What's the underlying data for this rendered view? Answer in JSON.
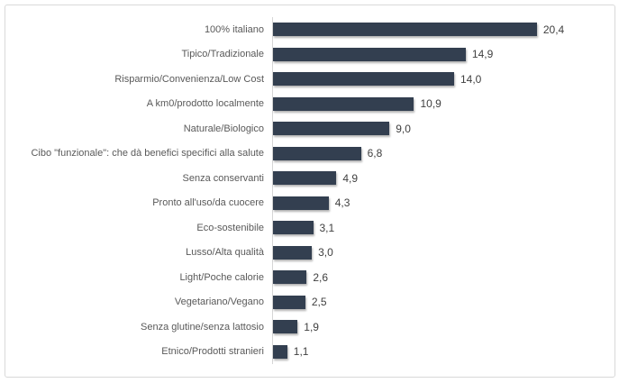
{
  "chart_data": {
    "type": "bar",
    "orientation": "horizontal",
    "title": "",
    "xlabel": "",
    "ylabel": "",
    "categories": [
      "100% italiano",
      "Tipico/Tradizionale",
      "Risparmio/Convenienza/Low Cost",
      "A km0/prodotto localmente",
      "Naturale/Biologico",
      "Cibo \"funzionale\": che dà benefici specifici alla salute",
      "Senza conservanti",
      "Pronto all'uso/da cuocere",
      "Eco-sostenibile",
      "Lusso/Alta qualità",
      "Light/Poche calorie",
      "Vegetariano/Vegano",
      "Senza glutine/senza lattosio",
      "Etnico/Prodotti stranieri"
    ],
    "values": [
      20.4,
      14.9,
      14.0,
      10.9,
      9.0,
      6.8,
      4.9,
      4.3,
      3.1,
      3.0,
      2.6,
      2.5,
      1.9,
      1.1
    ],
    "value_labels": [
      "20,4",
      "14,9",
      "14,0",
      "10,9",
      "9,0",
      "6,8",
      "4,9",
      "4,3",
      "3,1",
      "3,0",
      "2,6",
      "2,5",
      "1,9",
      "1,1"
    ],
    "xlim": [
      0,
      26.4
    ],
    "grid": "off",
    "legend": "none",
    "bar_color": "#333F50",
    "category_label_color": "#595959",
    "value_label_color": "#404040",
    "axis_line_color": "#D6D6D6",
    "frame_border_color": "#D9D9D9",
    "background_color": "#FFFFFF"
  }
}
